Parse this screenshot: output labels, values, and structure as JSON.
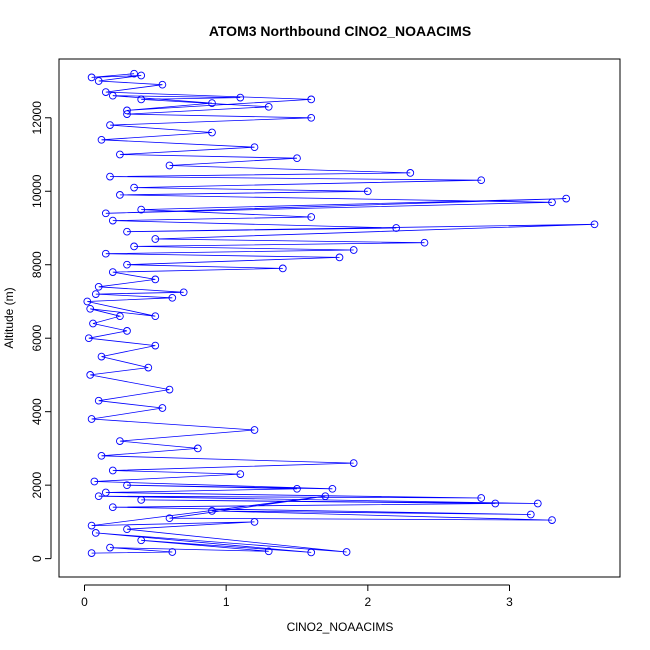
{
  "chart_data": {
    "type": "scatter",
    "title": "ATOM3 Northbound ClNO2_NOAACIMS",
    "xlabel": "ClNO2_NOAACIMS",
    "ylabel": "Altitude (m)",
    "xlim": [
      -0.18,
      3.78
    ],
    "ylim": [
      -500,
      13600
    ],
    "xticks": [
      0,
      1,
      2,
      3
    ],
    "yticks": [
      0,
      2000,
      4000,
      6000,
      8000,
      10000,
      12000
    ],
    "grid": false,
    "legend": "none",
    "series_color": "#0000ff",
    "style": "points connected by lines (open circles)",
    "series": [
      {
        "x": [
          0.05,
          0.62,
          0.18,
          1.3,
          0.4,
          1.6,
          0.08,
          1.85,
          0.3,
          1.2,
          0.05,
          1.7,
          0.6,
          3.3,
          0.9,
          3.15,
          0.2,
          2.9,
          0.4,
          3.2,
          0.1,
          2.8,
          0.15,
          1.5,
          0.3,
          1.75,
          0.07,
          1.1,
          0.2,
          1.9,
          0.12,
          0.8,
          0.25,
          1.2,
          0.05,
          0.55,
          0.1,
          0.6,
          0.04,
          0.45,
          0.12,
          0.5,
          0.03,
          0.3,
          0.06,
          0.25,
          0.04,
          0.5,
          0.02,
          0.62,
          0.08,
          0.7,
          0.1,
          0.5,
          0.2,
          1.4,
          0.3,
          1.8,
          0.15,
          1.9,
          0.35,
          2.4,
          0.5,
          3.6,
          0.3,
          2.2,
          0.2,
          1.6,
          0.4,
          3.4,
          0.15,
          3.3,
          0.25,
          2.0,
          0.35,
          2.8,
          0.18,
          2.3,
          0.6,
          1.5,
          0.25,
          1.2,
          0.12,
          0.9,
          0.18,
          1.6,
          0.3,
          1.3,
          0.4,
          1.1,
          0.2,
          0.9,
          0.3,
          1.6,
          0.15,
          0.55,
          0.1,
          0.4,
          0.05,
          0.35
        ],
        "y": [
          150,
          180,
          300,
          200,
          500,
          170,
          700,
          180,
          800,
          1000,
          900,
          1700,
          1100,
          1050,
          1300,
          1200,
          1400,
          1500,
          1600,
          1500,
          1700,
          1650,
          1800,
          1900,
          2000,
          1900,
          2100,
          2300,
          2400,
          2600,
          2800,
          3000,
          3200,
          3500,
          3800,
          4100,
          4300,
          4600,
          5000,
          5200,
          5500,
          5800,
          6000,
          6200,
          6400,
          6600,
          6800,
          6600,
          7000,
          7100,
          7200,
          7250,
          7400,
          7600,
          7800,
          7900,
          8000,
          8200,
          8300,
          8400,
          8500,
          8600,
          8700,
          9100,
          8900,
          9000,
          9200,
          9300,
          9500,
          9800,
          9400,
          9700,
          9900,
          10000,
          10100,
          10300,
          10400,
          10500,
          10700,
          10900,
          11000,
          11200,
          11400,
          11600,
          11800,
          12000,
          12100,
          12300,
          12500,
          12550,
          12600,
          12400,
          12200,
          12500,
          12700,
          12900,
          13000,
          13150,
          13100,
          13200
        ]
      }
    ]
  }
}
